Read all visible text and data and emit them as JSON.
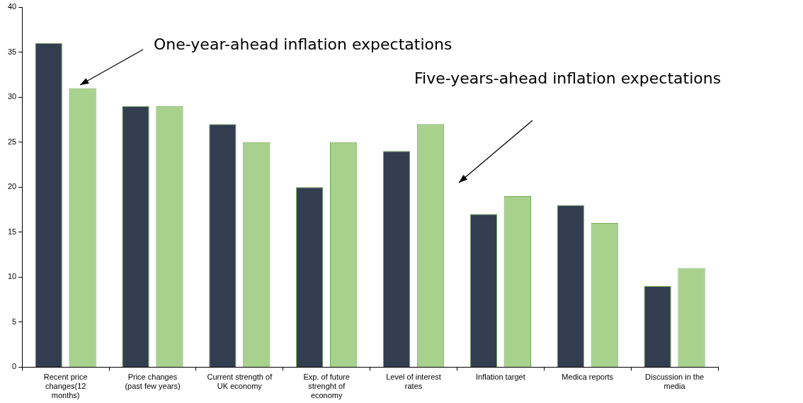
{
  "chart_data": {
    "type": "bar",
    "categories": [
      "Recent price changes(12 months)",
      "Price changes (past few years)",
      "Current strength of UK economy",
      "Exp. of future strenght of economy",
      "Level of interest rates",
      "Inflation target",
      "Medica reports",
      "Discussion in the media"
    ],
    "series": [
      {
        "color": "#333d50",
        "values": [
          36,
          29,
          27,
          20,
          24,
          17,
          18,
          9
        ]
      },
      {
        "color": "#a9d18e",
        "values": [
          31,
          29,
          25,
          25,
          27,
          19,
          16,
          11
        ]
      }
    ],
    "ylim": [
      0,
      40
    ],
    "yticks": [
      0,
      5,
      10,
      15,
      20,
      25,
      30,
      35,
      40
    ],
    "grid": false,
    "legend": false,
    "annotations": [
      "One-year-ahead inflation expectations",
      "Five-years-ahead inflation expectations"
    ]
  }
}
